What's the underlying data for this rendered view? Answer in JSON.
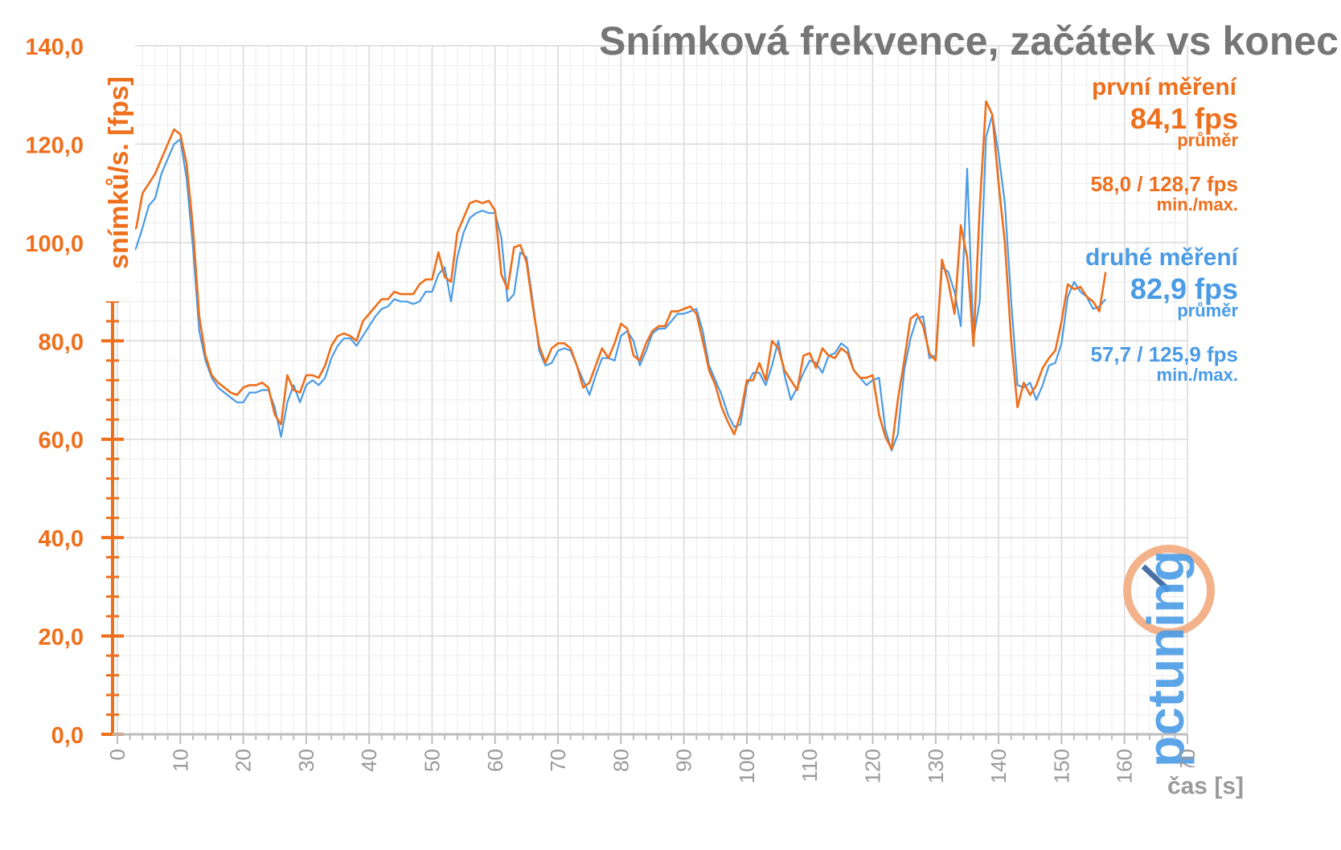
{
  "chart_data": {
    "type": "line",
    "title": "Snímková frekvence, začátek vs konec",
    "ylabel": "snímků/s. [fps]",
    "xlabel": "čas [s]",
    "xlim": [
      0,
      170
    ],
    "ylim": [
      0,
      140
    ],
    "x_ticks": [
      "0",
      "10",
      "20",
      "30",
      "40",
      "50",
      "60",
      "70",
      "80",
      "90",
      "100",
      "110",
      "120",
      "130",
      "140",
      "150",
      "160",
      "170"
    ],
    "y_ticks": [
      "0,0",
      "20,0",
      "40,0",
      "60,0",
      "80,0",
      "100,0",
      "120,0",
      "140,0"
    ],
    "grid": true,
    "series": [
      {
        "name": "první měření",
        "color": "#ee6f1c",
        "values": [
          [
            0,
            95
          ],
          [
            1,
            101
          ],
          [
            2,
            102
          ],
          [
            3,
            103
          ],
          [
            4,
            110
          ],
          [
            5,
            112
          ],
          [
            6,
            114
          ],
          [
            7,
            117
          ],
          [
            8,
            120
          ],
          [
            9,
            123
          ],
          [
            10,
            122
          ],
          [
            11,
            116
          ],
          [
            12,
            103
          ],
          [
            13,
            85
          ],
          [
            14,
            77
          ],
          [
            15,
            73
          ],
          [
            16,
            71.5
          ],
          [
            17,
            70.5
          ],
          [
            18,
            69.5
          ],
          [
            19,
            69
          ],
          [
            20,
            70.5
          ],
          [
            21,
            71
          ],
          [
            22,
            71
          ],
          [
            23,
            71.5
          ],
          [
            24,
            70.5
          ],
          [
            25,
            65
          ],
          [
            26,
            63
          ],
          [
            27,
            73
          ],
          [
            28,
            70
          ],
          [
            29,
            69.5
          ],
          [
            30,
            73
          ],
          [
            31,
            73
          ],
          [
            32,
            72.5
          ],
          [
            33,
            75
          ],
          [
            34,
            79
          ],
          [
            35,
            81
          ],
          [
            36,
            81.5
          ],
          [
            37,
            81
          ],
          [
            38,
            80
          ],
          [
            39,
            84
          ],
          [
            40,
            85.5
          ],
          [
            41,
            87
          ],
          [
            42,
            88.5
          ],
          [
            43,
            88.5
          ],
          [
            44,
            90
          ],
          [
            45,
            89.5
          ],
          [
            46,
            89.5
          ],
          [
            47,
            89.5
          ],
          [
            48,
            91.5
          ],
          [
            49,
            92.5
          ],
          [
            50,
            92.5
          ],
          [
            51,
            98
          ],
          [
            52,
            93
          ],
          [
            53,
            92
          ],
          [
            54,
            102
          ],
          [
            55,
            105
          ],
          [
            56,
            108
          ],
          [
            57,
            108.5
          ],
          [
            58,
            108
          ],
          [
            59,
            108.5
          ],
          [
            60,
            106.5
          ],
          [
            61,
            93.5
          ],
          [
            62,
            90.5
          ],
          [
            63,
            99
          ],
          [
            64,
            99.5
          ],
          [
            65,
            96
          ],
          [
            66,
            87
          ],
          [
            67,
            79
          ],
          [
            68,
            75.5
          ],
          [
            69,
            78.5
          ],
          [
            70,
            79.5
          ],
          [
            71,
            79.5
          ],
          [
            72,
            78.5
          ],
          [
            73,
            75
          ],
          [
            74,
            70.5
          ],
          [
            75,
            71.5
          ],
          [
            76,
            75
          ],
          [
            77,
            78.5
          ],
          [
            78,
            76.5
          ],
          [
            79,
            79.5
          ],
          [
            80,
            83.5
          ],
          [
            81,
            82.5
          ],
          [
            82,
            77
          ],
          [
            83,
            76
          ],
          [
            84,
            79.5
          ],
          [
            85,
            82
          ],
          [
            86,
            83
          ],
          [
            87,
            83
          ],
          [
            88,
            86
          ],
          [
            89,
            86
          ],
          [
            90,
            86.5
          ],
          [
            91,
            87
          ],
          [
            92,
            85.5
          ],
          [
            93,
            80
          ],
          [
            94,
            74
          ],
          [
            95,
            71
          ],
          [
            96,
            66.5
          ],
          [
            97,
            63.5
          ],
          [
            98,
            61
          ],
          [
            99,
            65
          ],
          [
            100,
            72
          ],
          [
            101,
            72
          ],
          [
            102,
            75.5
          ],
          [
            103,
            72
          ],
          [
            104,
            80
          ],
          [
            105,
            78.5
          ],
          [
            106,
            74
          ],
          [
            107,
            72
          ],
          [
            108,
            70
          ],
          [
            109,
            77
          ],
          [
            110,
            77.5
          ],
          [
            111,
            74.5
          ],
          [
            112,
            78.5
          ],
          [
            113,
            77
          ],
          [
            114,
            76.5
          ],
          [
            115,
            78.5
          ],
          [
            116,
            77.5
          ],
          [
            117,
            74
          ],
          [
            118,
            72.5
          ],
          [
            119,
            72.5
          ],
          [
            120,
            73
          ],
          [
            121,
            65
          ],
          [
            122,
            60.5
          ],
          [
            123,
            58
          ],
          [
            124,
            68
          ],
          [
            125,
            76
          ],
          [
            126,
            84.5
          ],
          [
            127,
            85.5
          ],
          [
            128,
            83
          ],
          [
            129,
            77.5
          ],
          [
            130,
            76
          ],
          [
            131,
            96.5
          ],
          [
            132,
            92
          ],
          [
            133,
            85.5
          ],
          [
            134,
            103.5
          ],
          [
            135,
            97
          ],
          [
            136,
            79
          ],
          [
            137,
            107
          ],
          [
            138,
            128.7
          ],
          [
            139,
            126
          ],
          [
            140,
            112
          ],
          [
            141,
            100
          ],
          [
            142,
            80
          ],
          [
            143,
            66.5
          ],
          [
            144,
            71.5
          ],
          [
            145,
            69
          ],
          [
            146,
            71
          ],
          [
            147,
            74.5
          ],
          [
            148,
            76.5
          ],
          [
            149,
            78
          ],
          [
            150,
            84
          ],
          [
            151,
            91.5
          ],
          [
            152,
            90.5
          ],
          [
            153,
            91
          ],
          [
            154,
            89
          ],
          [
            155,
            88
          ],
          [
            156,
            86
          ],
          [
            157,
            94
          ]
        ]
      },
      {
        "name": "druhé měření",
        "color": "#4a9be6",
        "values": [
          [
            0,
            96
          ],
          [
            1,
            97
          ],
          [
            2,
            97
          ],
          [
            3,
            99
          ],
          [
            4,
            103
          ],
          [
            5,
            107.5
          ],
          [
            6,
            109
          ],
          [
            7,
            114
          ],
          [
            8,
            117
          ],
          [
            9,
            120
          ],
          [
            10,
            121
          ],
          [
            11,
            113
          ],
          [
            12,
            99
          ],
          [
            13,
            82
          ],
          [
            14,
            76
          ],
          [
            15,
            72.5
          ],
          [
            16,
            70.5
          ],
          [
            17,
            69.5
          ],
          [
            18,
            68.5
          ],
          [
            19,
            67.5
          ],
          [
            20,
            67.5
          ],
          [
            21,
            69.5
          ],
          [
            22,
            69.5
          ],
          [
            23,
            70
          ],
          [
            24,
            70
          ],
          [
            25,
            66.5
          ],
          [
            26,
            60.5
          ],
          [
            27,
            67.5
          ],
          [
            28,
            71
          ],
          [
            29,
            67.5
          ],
          [
            30,
            71
          ],
          [
            31,
            72
          ],
          [
            32,
            71
          ],
          [
            33,
            72.5
          ],
          [
            34,
            76.5
          ],
          [
            35,
            79
          ],
          [
            36,
            80.5
          ],
          [
            37,
            80.5
          ],
          [
            38,
            79
          ],
          [
            39,
            81
          ],
          [
            40,
            83
          ],
          [
            41,
            85
          ],
          [
            42,
            86.5
          ],
          [
            43,
            87
          ],
          [
            44,
            88.5
          ],
          [
            45,
            88
          ],
          [
            46,
            88
          ],
          [
            47,
            87.5
          ],
          [
            48,
            88
          ],
          [
            49,
            90
          ],
          [
            50,
            90
          ],
          [
            51,
            93.5
          ],
          [
            52,
            95
          ],
          [
            53,
            88
          ],
          [
            54,
            97
          ],
          [
            55,
            102
          ],
          [
            56,
            105
          ],
          [
            57,
            106
          ],
          [
            58,
            106.5
          ],
          [
            59,
            106
          ],
          [
            60,
            106
          ],
          [
            61,
            101
          ],
          [
            62,
            88
          ],
          [
            63,
            89.5
          ],
          [
            64,
            98
          ],
          [
            65,
            97
          ],
          [
            66,
            88
          ],
          [
            67,
            78
          ],
          [
            68,
            75
          ],
          [
            69,
            75.5
          ],
          [
            70,
            78
          ],
          [
            71,
            78.5
          ],
          [
            72,
            78
          ],
          [
            73,
            75
          ],
          [
            74,
            72
          ],
          [
            75,
            69
          ],
          [
            76,
            73
          ],
          [
            77,
            76.5
          ],
          [
            78,
            76.5
          ],
          [
            79,
            76
          ],
          [
            80,
            81
          ],
          [
            81,
            82
          ],
          [
            82,
            80
          ],
          [
            83,
            75
          ],
          [
            84,
            78
          ],
          [
            85,
            81.5
          ],
          [
            86,
            82.5
          ],
          [
            87,
            82.5
          ],
          [
            88,
            84
          ],
          [
            89,
            85.5
          ],
          [
            90,
            85.5
          ],
          [
            91,
            86
          ],
          [
            92,
            86.5
          ],
          [
            93,
            82
          ],
          [
            94,
            75
          ],
          [
            95,
            72
          ],
          [
            96,
            69
          ],
          [
            97,
            65
          ],
          [
            98,
            62.5
          ],
          [
            99,
            63
          ],
          [
            100,
            71
          ],
          [
            101,
            73.5
          ],
          [
            102,
            73.5
          ],
          [
            103,
            71
          ],
          [
            104,
            75
          ],
          [
            105,
            80
          ],
          [
            106,
            73
          ],
          [
            107,
            68
          ],
          [
            108,
            70.5
          ],
          [
            109,
            73.5
          ],
          [
            110,
            76
          ],
          [
            111,
            75.5
          ],
          [
            112,
            73.5
          ],
          [
            113,
            77
          ],
          [
            114,
            77.5
          ],
          [
            115,
            79.5
          ],
          [
            116,
            78.5
          ],
          [
            117,
            74
          ],
          [
            118,
            72.5
          ],
          [
            119,
            71
          ],
          [
            120,
            72
          ],
          [
            121,
            72.5
          ],
          [
            122,
            62
          ],
          [
            123,
            57.7
          ],
          [
            124,
            61
          ],
          [
            125,
            74
          ],
          [
            126,
            80.5
          ],
          [
            127,
            84.5
          ],
          [
            128,
            85
          ],
          [
            129,
            76.5
          ],
          [
            130,
            77
          ],
          [
            131,
            95
          ],
          [
            132,
            94
          ],
          [
            133,
            90
          ],
          [
            134,
            83
          ],
          [
            135,
            115
          ],
          [
            136,
            80.5
          ],
          [
            137,
            88
          ],
          [
            138,
            121.5
          ],
          [
            139,
            125.9
          ],
          [
            140,
            118
          ],
          [
            141,
            108
          ],
          [
            142,
            88
          ],
          [
            143,
            71
          ],
          [
            144,
            70.5
          ],
          [
            145,
            71.5
          ],
          [
            146,
            68
          ],
          [
            147,
            71
          ],
          [
            148,
            75
          ],
          [
            149,
            75.5
          ],
          [
            150,
            79.5
          ],
          [
            151,
            89
          ],
          [
            152,
            92
          ],
          [
            153,
            90
          ],
          [
            154,
            89
          ],
          [
            155,
            86.5
          ],
          [
            156,
            87
          ],
          [
            157,
            88.5
          ]
        ]
      }
    ],
    "annotations": {
      "first": {
        "heading": "první měření",
        "avg": "84,1 fps",
        "avg_label": "průměr",
        "minmax": "58,0 / 128,7 fps",
        "minmax_label": "min./max.",
        "color": "#ee6f1c"
      },
      "second": {
        "heading": "druhé měření",
        "avg": "82,9 fps",
        "avg_label": "průměr",
        "minmax": "57,7 / 125,9 fps",
        "minmax_label": "min./max.",
        "color": "#4a9be6"
      }
    },
    "watermark": "pctuning"
  }
}
